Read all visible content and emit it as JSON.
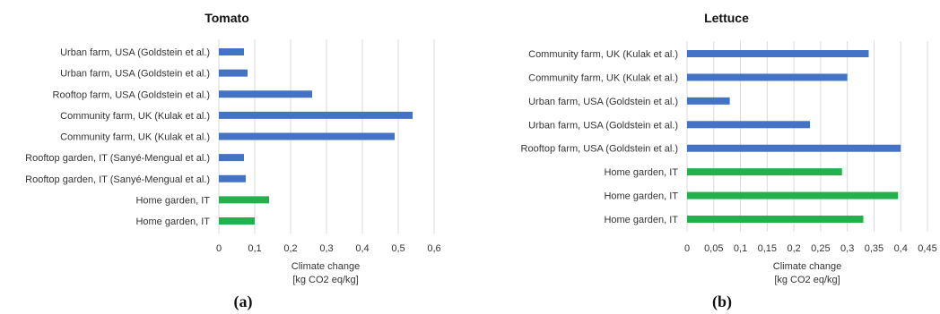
{
  "chart_data": [
    {
      "type": "bar",
      "orientation": "horizontal",
      "panel_label": "(a)",
      "title": "Tomato",
      "xlabel_lines": [
        "Climate change",
        "[kg CO2 eq/kg]"
      ],
      "xlim": [
        0,
        0.6
      ],
      "xticks": [
        0,
        0.1,
        0.2,
        0.3,
        0.4,
        0.5,
        0.6
      ],
      "xtick_labels": [
        "0",
        "0,1",
        "0,2",
        "0,3",
        "0,4",
        "0,5",
        "0,6"
      ],
      "grid": true,
      "categories": [
        "Urban farm, USA (Goldstein et al.)",
        "Urban farm, USA (Goldstein et al.)",
        "Rooftop farm, USA (Goldstein et al.)",
        "Community farm, UK (Kulak et al.)",
        "Community farm, UK (Kulak et al.)",
        "Rooftop garden, IT (Sanyé-Mengual et al.)",
        "Rooftop garden, IT (Sanyé-Mengual et al.)",
        "Home garden, IT",
        "Home garden, IT"
      ],
      "values": [
        0.07,
        0.08,
        0.26,
        0.54,
        0.49,
        0.07,
        0.075,
        0.14,
        0.1
      ],
      "colors": [
        "#4472C4",
        "#4472C4",
        "#4472C4",
        "#4472C4",
        "#4472C4",
        "#4472C4",
        "#4472C4",
        "#22B14C",
        "#22B14C"
      ]
    },
    {
      "type": "bar",
      "orientation": "horizontal",
      "panel_label": "(b)",
      "title": "Lettuce",
      "xlabel_lines": [
        "Climate change",
        "[kg CO2 eq/kg]"
      ],
      "xlim": [
        0,
        0.45
      ],
      "xticks": [
        0,
        0.05,
        0.1,
        0.15,
        0.2,
        0.25,
        0.3,
        0.35,
        0.4,
        0.45
      ],
      "xtick_labels": [
        "0",
        "0,05",
        "0,1",
        "0,15",
        "0,2",
        "0,25",
        "0,3",
        "0,35",
        "0,4",
        "0,45"
      ],
      "grid": true,
      "categories": [
        "Community farm, UK (Kulak et al.)",
        "Community farm, UK (Kulak et al.)",
        "Urban farm, USA (Goldstein et al.)",
        "Urban farm, USA (Goldstein et al.)",
        "Rooftop farm, USA (Goldstein et al.)",
        "Home garden, IT",
        "Home garden, IT",
        "Home garden, IT"
      ],
      "values": [
        0.34,
        0.3,
        0.08,
        0.23,
        0.4,
        0.29,
        0.395,
        0.33
      ],
      "colors": [
        "#4472C4",
        "#4472C4",
        "#4472C4",
        "#4472C4",
        "#4472C4",
        "#22B14C",
        "#22B14C",
        "#22B14C"
      ]
    }
  ]
}
